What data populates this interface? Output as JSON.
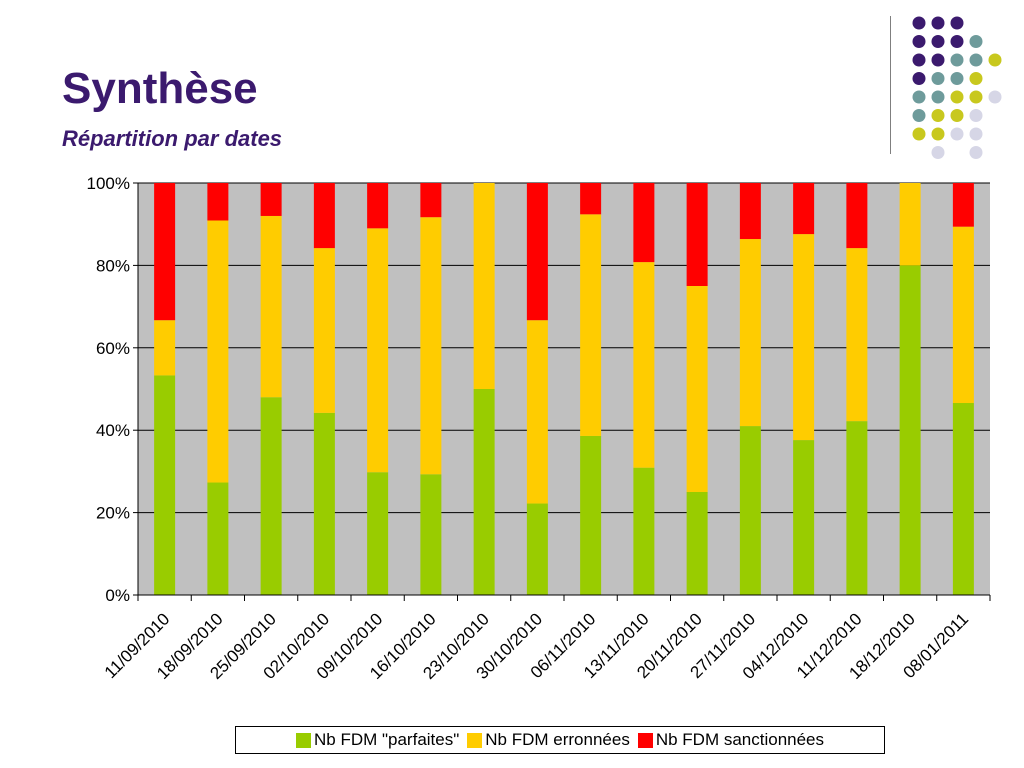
{
  "slide": {
    "title": "Synthèse",
    "subtitle": "Répartition par dates"
  },
  "decoration": {
    "dot_colors": [
      "#3b1a6e",
      "#6e9b9b",
      "#c8c81e",
      "#d6d6e6"
    ]
  },
  "chart_data": {
    "type": "bar",
    "stacked": "percent",
    "categories": [
      "11/09/2010",
      "18/09/2010",
      "25/09/2010",
      "02/10/2010",
      "09/10/2010",
      "16/10/2010",
      "23/10/2010",
      "30/10/2010",
      "06/11/2010",
      "13/11/2010",
      "20/11/2010",
      "27/11/2010",
      "04/12/2010",
      "11/12/2010",
      "18/12/2010",
      "08/01/2011"
    ],
    "series": [
      {
        "name": "Nb FDM \"parfaites\"",
        "color": "#99cc00",
        "values": [
          53.3,
          27.3,
          48,
          44.2,
          29.8,
          29.3,
          50,
          22.2,
          38.6,
          30.9,
          25,
          41,
          37.6,
          42.2,
          80,
          46.6
        ]
      },
      {
        "name": "Nb FDM erronnées",
        "color": "#ffcc00",
        "values": [
          13.4,
          63.6,
          44,
          40,
          59.2,
          62.4,
          50,
          44.5,
          53.8,
          49.9,
          50,
          45.4,
          50,
          42,
          20,
          42.8
        ]
      },
      {
        "name": "Nb FDM sanctionnées",
        "color": "#ff0000",
        "values": [
          33.3,
          9.1,
          8,
          15.8,
          11,
          8.3,
          0,
          33.3,
          7.6,
          19.2,
          25,
          13.6,
          12.4,
          15.8,
          0,
          10.6
        ]
      }
    ],
    "y_ticks": [
      "0%",
      "20%",
      "40%",
      "60%",
      "80%",
      "100%"
    ],
    "ylim": [
      0,
      100
    ],
    "plot_background": "#c0c0c0",
    "grid": true,
    "legend_position": "bottom"
  }
}
